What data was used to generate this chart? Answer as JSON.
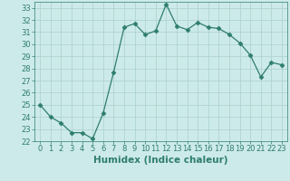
{
  "x": [
    0,
    1,
    2,
    3,
    4,
    5,
    6,
    7,
    8,
    9,
    10,
    11,
    12,
    13,
    14,
    15,
    16,
    17,
    18,
    19,
    20,
    21,
    22,
    23
  ],
  "y": [
    25.0,
    24.0,
    23.5,
    22.7,
    22.7,
    22.2,
    24.3,
    27.7,
    31.4,
    31.7,
    30.8,
    31.1,
    33.3,
    31.5,
    31.2,
    31.8,
    31.4,
    31.3,
    30.8,
    30.1,
    29.1,
    27.3,
    28.5,
    28.3
  ],
  "line_color": "#2e7d6e",
  "marker": "D",
  "marker_size": 2.5,
  "bg_color": "#cdeaea",
  "grid_color": "#aed4d0",
  "xlabel": "Humidex (Indice chaleur)",
  "xlim": [
    -0.5,
    23.5
  ],
  "ylim": [
    22,
    33.5
  ],
  "yticks": [
    22,
    23,
    24,
    25,
    26,
    27,
    28,
    29,
    30,
    31,
    32,
    33
  ],
  "xticks": [
    0,
    1,
    2,
    3,
    4,
    5,
    6,
    7,
    8,
    9,
    10,
    11,
    12,
    13,
    14,
    15,
    16,
    17,
    18,
    19,
    20,
    21,
    22,
    23
  ],
  "tick_label_fontsize": 6.0,
  "xlabel_fontsize": 7.5
}
